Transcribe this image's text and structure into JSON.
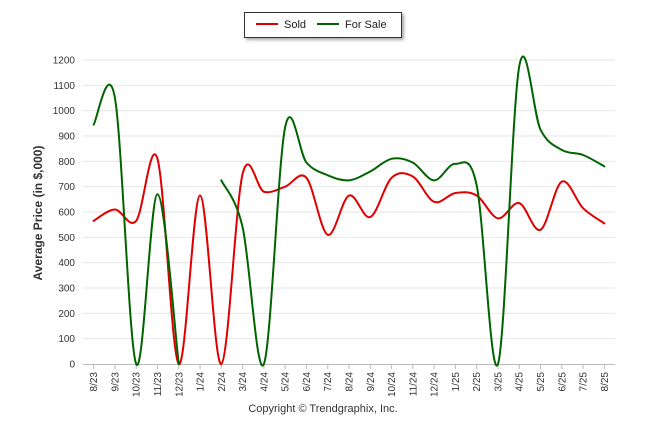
{
  "chart_data": {
    "type": "line",
    "title": "",
    "xlabel": "",
    "ylabel": "Average Price (in $,000)",
    "ylim": [
      0,
      1200
    ],
    "yticks": [
      0,
      100,
      200,
      300,
      400,
      500,
      600,
      700,
      800,
      900,
      1000,
      1100,
      1200
    ],
    "grid": true,
    "legend_position": "top-center",
    "categories": [
      "8/23",
      "9/23",
      "10/23",
      "11/23",
      "12/23",
      "1/24",
      "2/24",
      "3/24",
      "4/24",
      "5/24",
      "6/24",
      "7/24",
      "8/24",
      "9/24",
      "10/24",
      "11/24",
      "12/24",
      "1/25",
      "2/25",
      "3/25",
      "4/25",
      "5/25",
      "6/25",
      "7/25",
      "8/25"
    ],
    "series": [
      {
        "name": "Sold",
        "color": "#e00000",
        "values": [
          565,
          610,
          565,
          810,
          0,
          665,
          0,
          750,
          680,
          700,
          735,
          510,
          665,
          580,
          735,
          740,
          640,
          675,
          665,
          575,
          635,
          530,
          720,
          615,
          555
        ]
      },
      {
        "name": "For Sale",
        "color": "#006400",
        "values": [
          945,
          1050,
          0,
          670,
          0,
          null,
          725,
          540,
          0,
          935,
          795,
          745,
          725,
          760,
          810,
          795,
          725,
          790,
          705,
          0,
          1175,
          925,
          845,
          825,
          780
        ]
      }
    ]
  },
  "footer": {
    "copyright": "Copyright © Trendgraphix, Inc."
  }
}
